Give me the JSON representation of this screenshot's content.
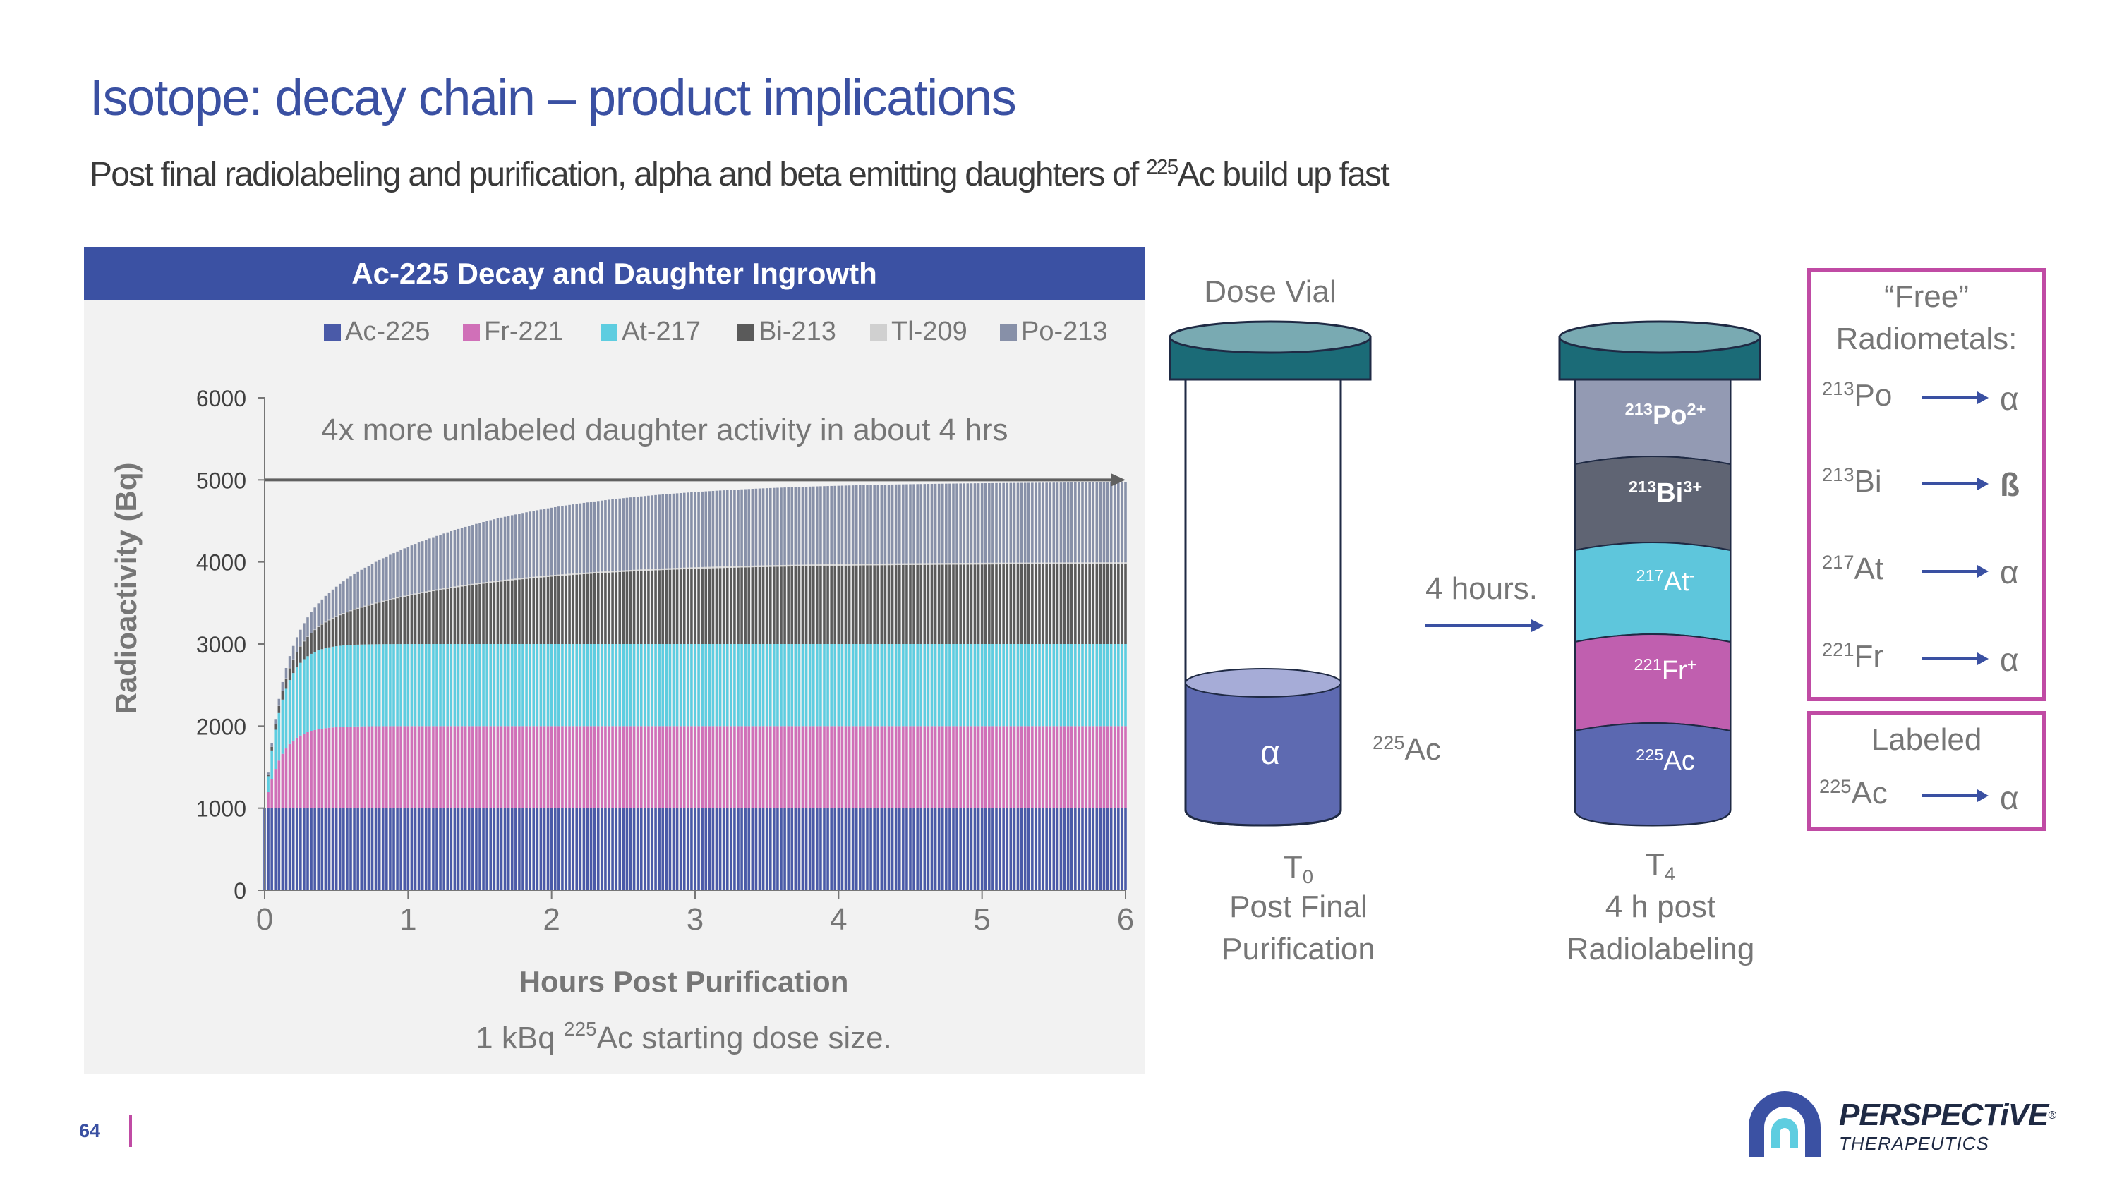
{
  "slide": {
    "title": "Isotope: decay chain – product implications",
    "subtitle_main": "Post final radiolabeling and purification, alpha and beta emitting daughters of ",
    "subtitle_sup": "225",
    "subtitle_tail": "Ac build up fast",
    "page_number": "64"
  },
  "chart_data": {
    "type": "bar",
    "stacked": true,
    "title": "Ac-225 Decay and Daughter Ingrowth",
    "xlabel": "Hours Post Purification",
    "ylabel": "Radioactivity (Bq)",
    "ylim": [
      0,
      6000
    ],
    "xlim": [
      0,
      6
    ],
    "yticks": [
      "0",
      "1000",
      "2000",
      "3000",
      "4000",
      "5000",
      "6000"
    ],
    "xticks": [
      "0",
      "1",
      "2",
      "3",
      "4",
      "5",
      "6"
    ],
    "legend_position": "top",
    "annotation": "4x more unlabeled daughter activity in about 4 hrs",
    "arrow_y": 5000,
    "caption_pre": "1 kBq ",
    "caption_sup": "225",
    "caption_post": "Ac starting dose size.",
    "series": [
      {
        "name": "Ac-225",
        "color": "#4a5aa8",
        "half_life_h": 0,
        "plateau": 1000
      },
      {
        "name": "Fr-221",
        "color": "#d070b8",
        "half_life_h": 0.08,
        "plateau": 1000
      },
      {
        "name": "At-217",
        "color": "#5ecde0",
        "half_life_h": 0.08,
        "plateau": 1000
      },
      {
        "name": "Bi-213",
        "color": "#5a5a5a",
        "half_life_h": 0.76,
        "plateau": 980
      },
      {
        "name": "Tl-209",
        "color": "#d0d0d0",
        "half_life_h": 0.76,
        "plateau": 20
      },
      {
        "name": "Po-213",
        "color": "#8790a8",
        "half_life_h": 0.76,
        "plateau": 980
      }
    ],
    "x_step_h": 0.025
  },
  "dose_vial": {
    "title": "Dose Vial",
    "content_symbol": "α",
    "side_label_sup": "225",
    "side_label": "Ac",
    "time_label": "T",
    "time_sub": "0",
    "caption_line1": "Post Final",
    "caption_line2": "Purification"
  },
  "transition": {
    "label": "4 hours."
  },
  "vial_t4": {
    "segments": [
      {
        "sup": "213",
        "text": "Po",
        "charge": "2+",
        "color": "#939ab3"
      },
      {
        "sup": "213",
        "text": "Bi",
        "charge": "3+",
        "color": "#5f6473"
      },
      {
        "sup": "217",
        "text": "At",
        "charge": "-",
        "color": "#5ec6dc"
      },
      {
        "sup": "221",
        "text": "Fr",
        "charge": "+",
        "color": "#c05faf"
      },
      {
        "sup": "225",
        "text": "Ac",
        "charge": "",
        "color": "#5b68b1"
      }
    ],
    "time_label": "T",
    "time_sub": "4",
    "caption_line1": "4 h post",
    "caption_line2": "Radiolabeling"
  },
  "free_box": {
    "title_line1": "“Free”",
    "title_line2": "Radiometals:",
    "rows": [
      {
        "sup": "213",
        "el": "Po",
        "emission": "α"
      },
      {
        "sup": "213",
        "el": "Bi",
        "emission": "ß"
      },
      {
        "sup": "217",
        "el": "At",
        "emission": "α"
      },
      {
        "sup": "221",
        "el": "Fr",
        "emission": "α"
      }
    ]
  },
  "labeled_box": {
    "title": "Labeled",
    "sup": "225",
    "el": "Ac",
    "emission": "α"
  },
  "logo": {
    "name": "PERSPECTiVE",
    "registered": "®",
    "sub": "THERAPEUTICS"
  },
  "colors": {
    "brand_blue": "#3a50a2",
    "magenta": "#c04ba4",
    "teal_cap": "#1b6b77"
  }
}
